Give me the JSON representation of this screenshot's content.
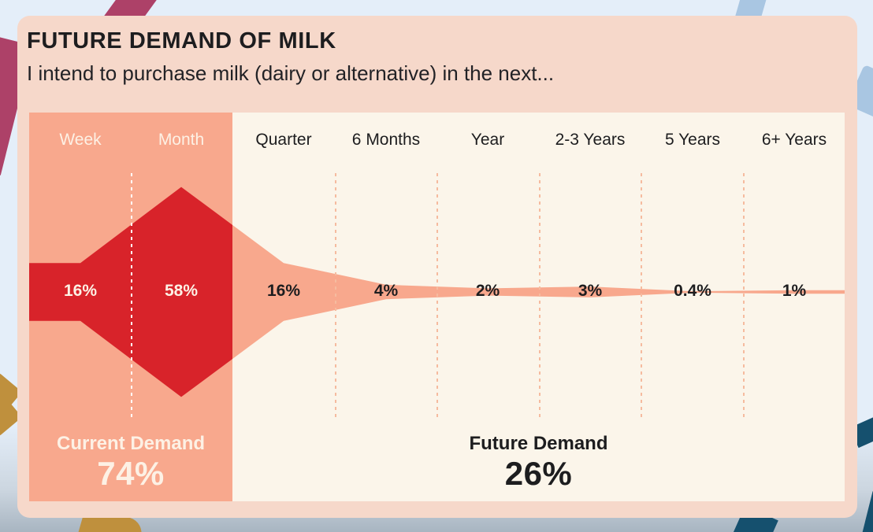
{
  "header": {
    "title": "FUTURE DEMAND OF MILK",
    "subtitle": "I intend to purchase milk (dairy or alternative) in the next..."
  },
  "chart_data": {
    "type": "area",
    "variant": "stream-funnel",
    "unit": "%",
    "title": "FUTURE DEMAND OF MILK",
    "subtitle": "I intend to purchase milk (dairy or alternative) in the next...",
    "categories": [
      "Week",
      "Month",
      "Quarter",
      "6 Months",
      "Year",
      "2-3 Years",
      "5 Years",
      "6+ Years"
    ],
    "values": [
      16,
      58,
      16,
      4,
      2,
      3,
      0.4,
      1
    ],
    "value_labels": [
      "16%",
      "58%",
      "16%",
      "4%",
      "2%",
      "3%",
      "0.4%",
      "1%"
    ],
    "current_region_columns": 2,
    "summaries": {
      "current": {
        "label": "Current Demand",
        "value": "74%"
      },
      "future": {
        "label": "Future Demand",
        "value": "26%"
      }
    },
    "legend": "none",
    "grid": "dashed vertical separators between time columns"
  },
  "colors": {
    "page-bg": "#e4eef9",
    "page-bg-bottom": "#a8b5c1",
    "card-bg": "#f6d8ca",
    "current-bg": "#f8a88d",
    "future-bg": "#fbf5ea",
    "stream-current": "#d8232a",
    "stream-future": "#f8a88d",
    "text-dark": "#1d1d1f",
    "text-light": "#fdf1e5",
    "separator-salmon": "#f5bb9f",
    "ribbon-berry": "#ad4168",
    "ribbon-gold": "#bf903d",
    "ribbon-navy": "#15506e",
    "ribbon-steel": "#a9c6e2"
  }
}
